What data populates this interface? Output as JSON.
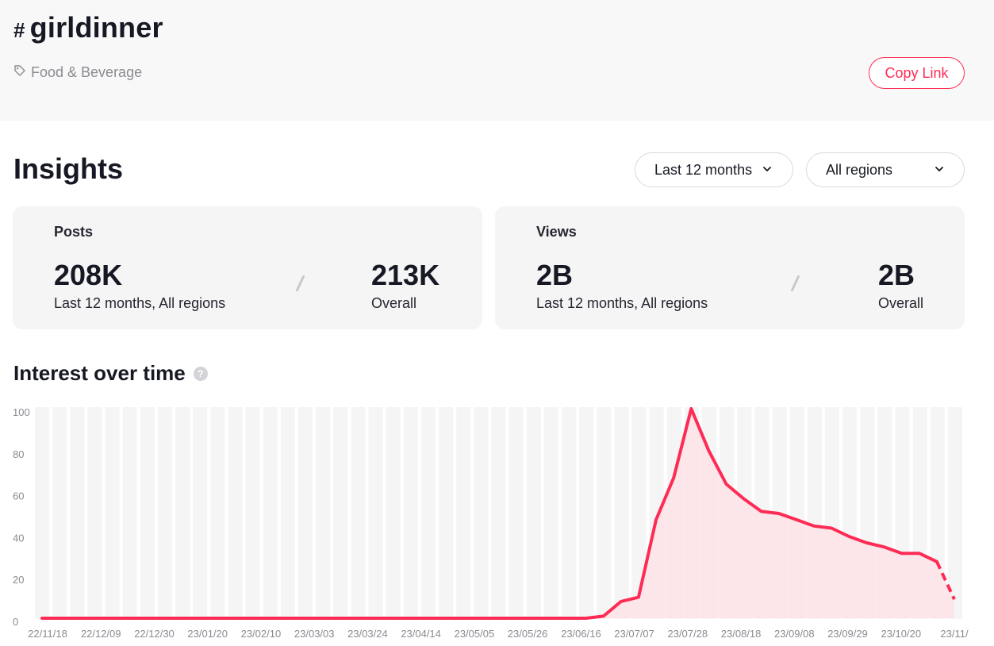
{
  "header": {
    "hash_symbol": "#",
    "hashtag": "girldinner",
    "category": "Food & Beverage",
    "copy_link": "Copy Link"
  },
  "insights": {
    "title": "Insights",
    "period_select": "Last 12 months",
    "region_select": "All regions"
  },
  "posts_card": {
    "label": "Posts",
    "recent_value": "208K",
    "recent_caption": "Last 12 months, All regions",
    "overall_value": "213K",
    "overall_caption": "Overall"
  },
  "views_card": {
    "label": "Views",
    "recent_value": "2B",
    "recent_caption": "Last 12 months, All regions",
    "overall_value": "2B",
    "overall_caption": "Overall"
  },
  "chart_section": {
    "title": "Interest over time",
    "help_icon": "question-circle-icon"
  },
  "colors": {
    "accent": "#fe2c55",
    "line": "#fe2c55",
    "area": "#fde3e8",
    "grid_bar": "#f5f5f6"
  },
  "chart_data": {
    "type": "area",
    "title": "Interest over time",
    "ylim": [
      0,
      100
    ],
    "y_ticks": [
      "100",
      "80",
      "60",
      "40",
      "20",
      "0"
    ],
    "x_tick_labels": [
      "22/11/18",
      "22/12/09",
      "22/12/30",
      "23/01/20",
      "23/02/10",
      "23/03/03",
      "23/03/24",
      "23/04/14",
      "23/05/05",
      "23/05/26",
      "23/06/16",
      "23/07/07",
      "23/07/28",
      "23/08/18",
      "23/09/08",
      "23/09/29",
      "23/10/20",
      "23/11/"
    ],
    "series": [
      {
        "values": [
          0,
          0,
          0,
          0,
          0,
          0,
          0,
          0,
          0,
          0,
          0,
          0,
          0,
          0,
          0,
          0,
          0,
          0,
          0,
          0,
          0,
          0,
          0,
          0,
          0,
          0,
          0,
          0,
          0,
          0,
          0,
          0,
          1,
          8,
          10,
          47,
          67,
          100,
          80,
          64,
          57,
          51,
          50,
          47,
          44,
          43,
          39,
          36,
          34,
          31,
          31,
          27,
          9
        ],
        "last_point_partial": true
      }
    ],
    "grid": true,
    "legend": "none"
  }
}
